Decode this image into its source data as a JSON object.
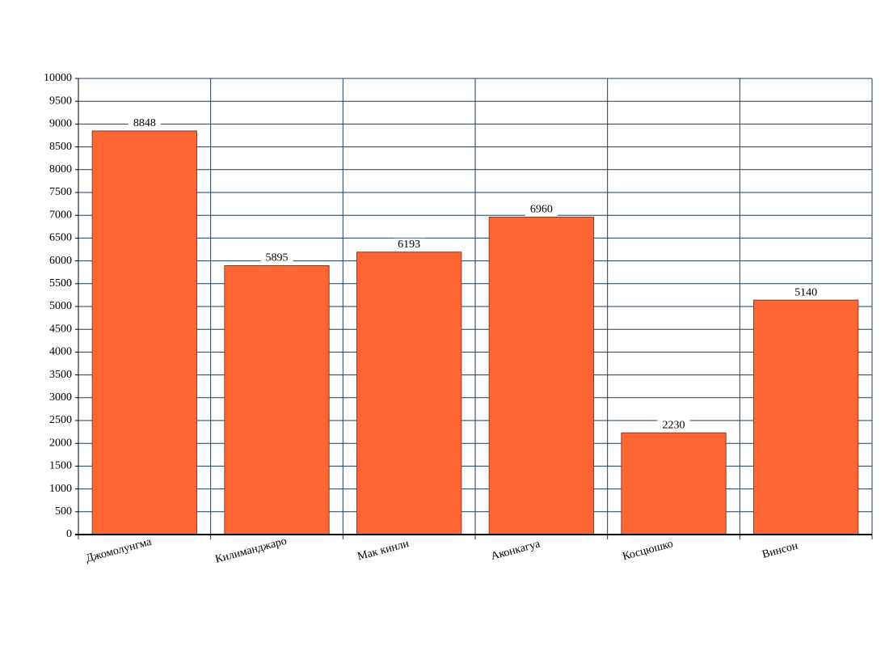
{
  "chart_data": {
    "type": "bar",
    "categories": [
      "Джомолунгма",
      "Килиманджаро",
      "Мак кинли",
      "Аконкагуа",
      "Косцюшко",
      "Винсон"
    ],
    "values": [
      8848,
      5895,
      6193,
      6960,
      2230,
      5140
    ],
    "color": "#ff6633",
    "ylim": [
      0,
      10000
    ],
    "yticks": [
      0,
      500,
      1000,
      1500,
      2000,
      2500,
      3000,
      3500,
      4000,
      4500,
      5000,
      5500,
      6000,
      6500,
      7000,
      7500,
      8000,
      8500,
      9000,
      9500,
      10000
    ],
    "grid": true
  }
}
